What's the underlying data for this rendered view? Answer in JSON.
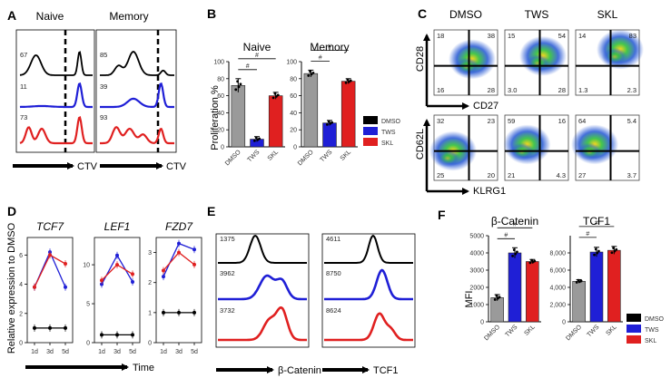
{
  "panels": {
    "A": {
      "letter": "A",
      "axis_label": "CTV",
      "groups": [
        {
          "title": "Naive",
          "numbers": [
            "67",
            "11",
            "73"
          ]
        },
        {
          "title": "Memory",
          "numbers": [
            "85",
            "39",
            "93"
          ]
        }
      ],
      "colors": [
        "#000000",
        "#1f1fd6",
        "#e02020"
      ]
    },
    "B": {
      "letter": "B",
      "ylabel": "Proliferation %",
      "sig": "#",
      "legend": [
        {
          "label": "DMSO",
          "color": "#000000"
        },
        {
          "label": "TWS",
          "color": "#1f1fd6"
        },
        {
          "label": "SKL",
          "color": "#e02020"
        }
      ]
    },
    "C": {
      "letter": "C",
      "columns": [
        "DMSO",
        "TWS",
        "SKL"
      ],
      "row_axes": [
        {
          "y": "CD28",
          "x": "CD27"
        },
        {
          "y": "CD62L",
          "x": "KLRG1"
        }
      ],
      "quadrants": [
        [
          [
            "18",
            "38",
            "16",
            "28"
          ],
          [
            "15",
            "54",
            "3.0",
            "28"
          ],
          [
            "14",
            "83",
            "1.3",
            "2.3"
          ]
        ],
        [
          [
            "32",
            "23",
            "25",
            "20"
          ],
          [
            "59",
            "16",
            "21",
            "4.3"
          ],
          [
            "64",
            "5.4",
            "27",
            "3.7"
          ]
        ]
      ]
    },
    "D": {
      "letter": "D",
      "ylabel": "Relative expression to DMSO",
      "xlabel": "Time"
    },
    "E": {
      "letter": "E",
      "groups": [
        {
          "axis_label": "β-Catenin",
          "numbers": [
            "1375",
            "3962",
            "3732"
          ]
        },
        {
          "axis_label": "TCF1",
          "numbers": [
            "4611",
            "8750",
            "8624"
          ]
        }
      ],
      "colors": [
        "#000000",
        "#1f1fd6",
        "#e02020"
      ]
    },
    "F": {
      "letter": "F",
      "ylabel": "MFI",
      "sig": "#",
      "legend": [
        {
          "label": "DMSO",
          "color": "#000000"
        },
        {
          "label": "TWS",
          "color": "#1f1fd6"
        },
        {
          "label": "SKL",
          "color": "#e02020"
        }
      ]
    }
  },
  "chart_data": [
    {
      "panel": "B",
      "type": "bar",
      "title": "Naive",
      "categories": [
        "DMSO",
        "TWS",
        "SKL"
      ],
      "values": [
        72,
        9,
        60
      ],
      "errors": [
        8,
        3,
        4
      ],
      "colors": [
        "#9a9a9a",
        "#1f1fd6",
        "#e02020"
      ],
      "ylim": [
        0,
        100
      ],
      "yticks": [
        0,
        20,
        40,
        60,
        80,
        100
      ]
    },
    {
      "panel": "B",
      "type": "bar",
      "title": "Memory",
      "categories": [
        "DMSO",
        "TWS",
        "SKL"
      ],
      "values": [
        86,
        28,
        77
      ],
      "errors": [
        4,
        3,
        3
      ],
      "colors": [
        "#9a9a9a",
        "#1f1fd6",
        "#e02020"
      ],
      "ylim": [
        0,
        100
      ],
      "yticks": [
        0,
        20,
        40,
        60,
        80,
        100
      ]
    },
    {
      "panel": "D",
      "type": "line",
      "title": "TCF7",
      "x": [
        "1d",
        "3d",
        "5d"
      ],
      "yticks": [
        0,
        2,
        4,
        6
      ],
      "ylim": [
        0,
        7.2
      ],
      "series": [
        {
          "color": "#1f1fd6",
          "values": [
            3.8,
            6.2,
            3.8
          ]
        },
        {
          "color": "#e02020",
          "values": [
            3.8,
            6.0,
            5.4
          ]
        },
        {
          "color": "#000000",
          "values": [
            1.0,
            1.0,
            1.0
          ]
        }
      ]
    },
    {
      "panel": "D",
      "type": "line",
      "title": "LEF1",
      "x": [
        "1d",
        "3d",
        "5d"
      ],
      "yticks": [
        0,
        5,
        10
      ],
      "ylim": [
        0,
        13.5
      ],
      "series": [
        {
          "color": "#1f1fd6",
          "values": [
            7.5,
            11.2,
            7.8
          ]
        },
        {
          "color": "#e02020",
          "values": [
            8.0,
            10.0,
            8.8
          ]
        },
        {
          "color": "#000000",
          "values": [
            1.0,
            1.0,
            1.0
          ]
        }
      ]
    },
    {
      "panel": "D",
      "type": "line",
      "title": "FZD7",
      "x": [
        "1d",
        "3d",
        "5d"
      ],
      "yticks": [
        0,
        1,
        2,
        3
      ],
      "ylim": [
        0,
        3.5
      ],
      "series": [
        {
          "color": "#1f1fd6",
          "values": [
            2.2,
            3.3,
            3.1
          ]
        },
        {
          "color": "#e02020",
          "values": [
            2.4,
            3.0,
            2.6
          ]
        },
        {
          "color": "#000000",
          "values": [
            1.0,
            1.0,
            1.0
          ]
        }
      ]
    },
    {
      "panel": "F",
      "type": "bar",
      "title": "β-Catenin",
      "categories": [
        "DMSO",
        "TWS",
        "SKL"
      ],
      "values": [
        1400,
        4000,
        3500
      ],
      "errors": [
        180,
        300,
        120
      ],
      "colors": [
        "#9a9a9a",
        "#1f1fd6",
        "#e02020"
      ],
      "ylim": [
        0,
        5000
      ],
      "yticks": [
        0,
        1000,
        2000,
        3000,
        4000,
        5000
      ]
    },
    {
      "panel": "F",
      "type": "bar",
      "title": "TCF1",
      "categories": [
        "DMSO",
        "TWS",
        "SKL"
      ],
      "values": [
        4700,
        8100,
        8300
      ],
      "errors": [
        200,
        550,
        450
      ],
      "colors": [
        "#9a9a9a",
        "#1f1fd6",
        "#e02020"
      ],
      "ylim": [
        0,
        10000
      ],
      "yticks": [
        0,
        2000,
        4000,
        6000,
        8000
      ],
      "ytick_labels": [
        "0",
        "2,000",
        "4,000",
        "6,000",
        "8,000"
      ]
    }
  ]
}
